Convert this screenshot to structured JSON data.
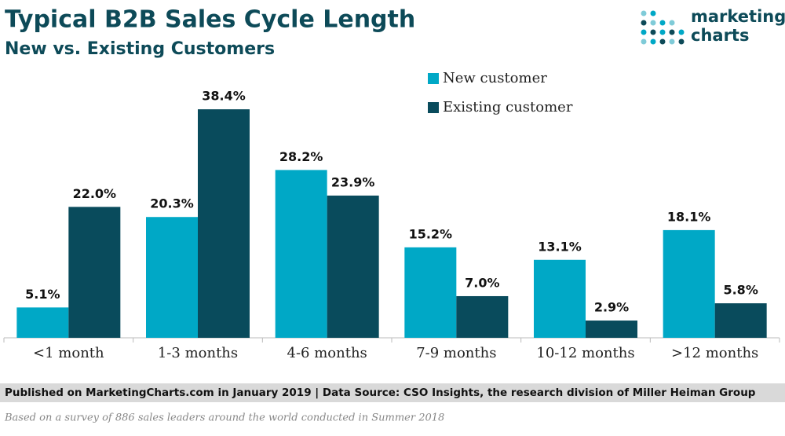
{
  "chart_data": {
    "type": "bar",
    "title": "Typical B2B Sales Cycle Length",
    "subtitle": "New vs. Existing Customers",
    "categories": [
      "<1 month",
      "1-3 months",
      "4-6 months",
      "7-9 months",
      "10-12 months",
      ">12 months"
    ],
    "series": [
      {
        "name": "New customer",
        "color": "#00a8c6",
        "values": [
          5.1,
          20.3,
          28.2,
          15.2,
          13.1,
          18.1
        ],
        "value_labels": [
          "5.1%",
          "20.3%",
          "28.2%",
          "15.2%",
          "13.1%",
          "18.1%"
        ]
      },
      {
        "name": "Existing customer",
        "color": "#094b5c",
        "values": [
          22.0,
          38.4,
          23.9,
          7.0,
          2.9,
          5.8
        ],
        "value_labels": [
          "22.0%",
          "38.4%",
          "23.9%",
          "7.0%",
          "2.9%",
          "5.8%"
        ]
      }
    ],
    "ylim": [
      0,
      40
    ],
    "legend": "top",
    "source": "Published on MarketingCharts.com in January 2019 | Data Source: CSO Insights, the research division of Miller Heiman Group",
    "note": "Based on a survey of 886 sales leaders around the world conducted in Summer 2018",
    "logo": [
      "marketing",
      "charts"
    ]
  }
}
